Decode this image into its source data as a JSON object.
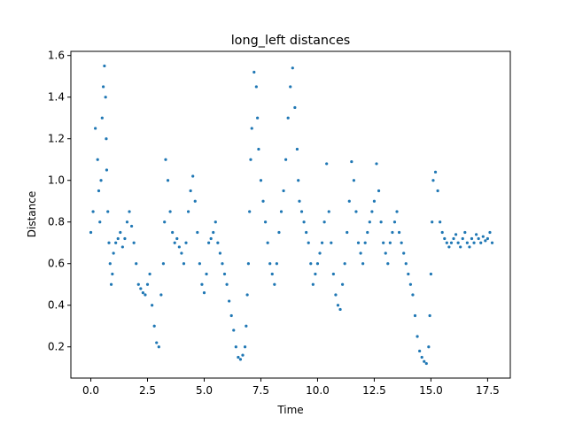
{
  "chart_data": {
    "type": "scatter",
    "title": "long_left distances",
    "xlabel": "Time",
    "ylabel": "Distance",
    "xlim": [
      -0.88,
      18.5
    ],
    "ylim": [
      0.05,
      1.62
    ],
    "xticks": [
      0.0,
      2.5,
      5.0,
      7.5,
      10.0,
      12.5,
      15.0,
      17.5
    ],
    "xtick_labels": [
      "0.0",
      "2.5",
      "5.0",
      "7.5",
      "10.0",
      "12.5",
      "15.0",
      "17.5"
    ],
    "yticks": [
      0.2,
      0.4,
      0.6,
      0.8,
      1.0,
      1.2,
      1.4,
      1.6
    ],
    "ytick_labels": [
      "0.2",
      "0.4",
      "0.6",
      "0.8",
      "1.0",
      "1.2",
      "1.4",
      "1.6"
    ],
    "grid": false,
    "marker_color": "#1f77b4",
    "series": [
      {
        "x": [
          0.0,
          0.1,
          0.2,
          0.3,
          0.35,
          0.4,
          0.45,
          0.5,
          0.55,
          0.6,
          0.65,
          0.68,
          0.7,
          0.75,
          0.8,
          0.85,
          0.9,
          0.95,
          1.0,
          1.1,
          1.2,
          1.3,
          1.4,
          1.5,
          1.6,
          1.7,
          1.8,
          1.9,
          2.0,
          2.1,
          2.2,
          2.3,
          2.4,
          2.5,
          2.6,
          2.7,
          2.8,
          2.9,
          3.0,
          3.1,
          3.2,
          3.25,
          3.3,
          3.4,
          3.5,
          3.6,
          3.7,
          3.8,
          3.9,
          4.0,
          4.1,
          4.2,
          4.3,
          4.4,
          4.5,
          4.6,
          4.7,
          4.8,
          4.9,
          5.0,
          5.1,
          5.2,
          5.3,
          5.4,
          5.5,
          5.6,
          5.7,
          5.8,
          5.9,
          6.0,
          6.1,
          6.2,
          6.3,
          6.4,
          6.5,
          6.6,
          6.7,
          6.8,
          6.85,
          6.9,
          6.95,
          7.0,
          7.05,
          7.1,
          7.2,
          7.3,
          7.35,
          7.4,
          7.5,
          7.6,
          7.7,
          7.8,
          7.9,
          8.0,
          8.1,
          8.2,
          8.3,
          8.4,
          8.5,
          8.6,
          8.7,
          8.8,
          8.9,
          9.0,
          9.1,
          9.15,
          9.2,
          9.3,
          9.4,
          9.5,
          9.6,
          9.7,
          9.8,
          9.9,
          10.0,
          10.1,
          10.2,
          10.3,
          10.4,
          10.5,
          10.6,
          10.7,
          10.8,
          10.9,
          11.0,
          11.1,
          11.2,
          11.3,
          11.4,
          11.5,
          11.6,
          11.7,
          11.8,
          11.9,
          12.0,
          12.1,
          12.2,
          12.3,
          12.4,
          12.5,
          12.6,
          12.7,
          12.8,
          12.9,
          13.0,
          13.1,
          13.2,
          13.3,
          13.4,
          13.5,
          13.6,
          13.7,
          13.8,
          13.9,
          14.0,
          14.1,
          14.2,
          14.3,
          14.4,
          14.5,
          14.6,
          14.7,
          14.8,
          14.9,
          14.95,
          15.0,
          15.05,
          15.1,
          15.2,
          15.3,
          15.4,
          15.5,
          15.6,
          15.7,
          15.8,
          15.9,
          16.0,
          16.1,
          16.2,
          16.3,
          16.4,
          16.5,
          16.6,
          16.7,
          16.8,
          16.9,
          17.0,
          17.1,
          17.2,
          17.3,
          17.4,
          17.5,
          17.6,
          17.7
        ],
        "y": [
          0.75,
          0.85,
          1.25,
          1.1,
          0.95,
          0.8,
          1.0,
          1.3,
          1.45,
          1.55,
          1.4,
          1.2,
          1.05,
          0.85,
          0.7,
          0.6,
          0.5,
          0.55,
          0.65,
          0.7,
          0.72,
          0.75,
          0.68,
          0.72,
          0.8,
          0.85,
          0.78,
          0.7,
          0.6,
          0.5,
          0.48,
          0.46,
          0.45,
          0.5,
          0.55,
          0.4,
          0.3,
          0.22,
          0.2,
          0.45,
          0.6,
          0.8,
          1.1,
          1.0,
          0.85,
          0.75,
          0.7,
          0.72,
          0.68,
          0.65,
          0.6,
          0.7,
          0.85,
          0.95,
          1.02,
          0.9,
          0.75,
          0.6,
          0.5,
          0.46,
          0.55,
          0.7,
          0.72,
          0.75,
          0.8,
          0.7,
          0.65,
          0.6,
          0.55,
          0.5,
          0.42,
          0.35,
          0.28,
          0.2,
          0.15,
          0.14,
          0.16,
          0.2,
          0.3,
          0.45,
          0.6,
          0.85,
          1.1,
          1.25,
          1.52,
          1.45,
          1.3,
          1.15,
          1.0,
          0.9,
          0.8,
          0.7,
          0.6,
          0.55,
          0.5,
          0.6,
          0.75,
          0.85,
          0.95,
          1.1,
          1.3,
          1.45,
          1.54,
          1.35,
          1.15,
          1.0,
          0.9,
          0.85,
          0.8,
          0.75,
          0.7,
          0.6,
          0.5,
          0.55,
          0.6,
          0.65,
          0.7,
          0.8,
          1.08,
          0.85,
          0.7,
          0.55,
          0.45,
          0.4,
          0.38,
          0.5,
          0.6,
          0.75,
          0.9,
          1.09,
          1.0,
          0.85,
          0.7,
          0.65,
          0.6,
          0.7,
          0.75,
          0.8,
          0.85,
          0.9,
          1.08,
          0.95,
          0.8,
          0.7,
          0.65,
          0.6,
          0.7,
          0.75,
          0.8,
          0.85,
          0.75,
          0.7,
          0.65,
          0.6,
          0.55,
          0.5,
          0.45,
          0.35,
          0.25,
          0.18,
          0.15,
          0.13,
          0.12,
          0.2,
          0.35,
          0.55,
          0.8,
          1.0,
          1.04,
          0.95,
          0.8,
          0.75,
          0.72,
          0.7,
          0.68,
          0.7,
          0.72,
          0.74,
          0.7,
          0.68,
          0.72,
          0.75,
          0.7,
          0.68,
          0.72,
          0.7,
          0.74,
          0.72,
          0.7,
          0.73,
          0.71,
          0.72,
          0.75,
          0.7
        ]
      }
    ]
  }
}
